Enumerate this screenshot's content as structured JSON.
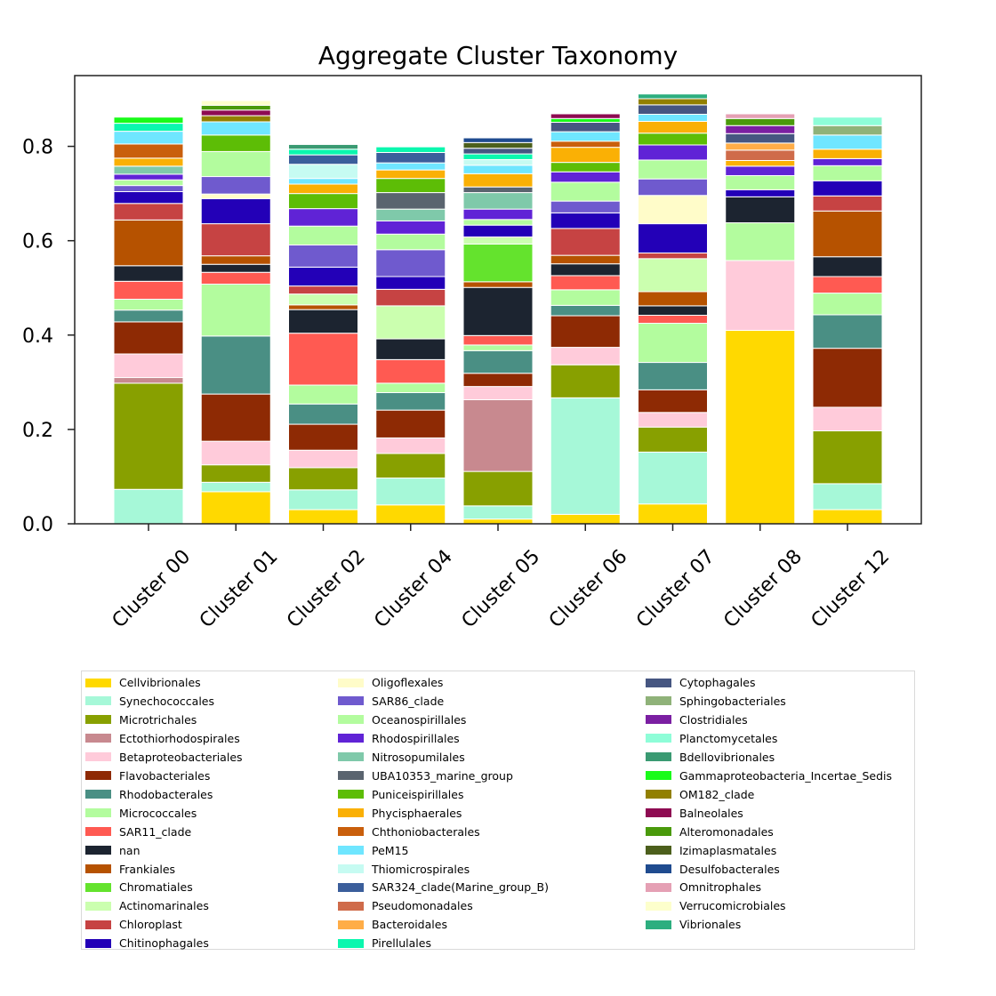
{
  "chart_data": {
    "type": "bar",
    "stacked": true,
    "title": "Aggregate Cluster Taxonomy",
    "xlabel": "",
    "ylabel": "",
    "ylim": [
      0,
      0.95
    ],
    "yticks": [
      0.0,
      0.2,
      0.4,
      0.6,
      0.8
    ],
    "ytick_labels": [
      "0.0",
      "0.2",
      "0.4",
      "0.6",
      "0.8"
    ],
    "categories": [
      "Cluster 00",
      "Cluster 01",
      "Cluster 02",
      "Cluster 04",
      "Cluster 05",
      "Cluster 06",
      "Cluster 07",
      "Cluster 08",
      "Cluster 12"
    ],
    "legend_position": "bottom",
    "series": [
      {
        "name": "Cellvibrionales",
        "color": "#FFD900",
        "values": [
          0,
          0.068,
          0.03,
          0.04,
          0.01,
          0.02,
          0.042,
          0.41,
          0.03
        ]
      },
      {
        "name": "Synechococcales",
        "color": "#A6F8D8",
        "values": [
          0.073,
          0.02,
          0.042,
          0.057,
          0.028,
          0.247,
          0.11,
          0,
          0.055
        ]
      },
      {
        "name": "Microtrichales",
        "color": "#88A000",
        "values": [
          0.225,
          0.037,
          0.047,
          0.052,
          0.073,
          0.07,
          0.053,
          0,
          0.112
        ]
      },
      {
        "name": "Ectothiorhodospirales",
        "color": "#C8898F",
        "values": [
          0.012,
          0,
          0,
          0,
          0.152,
          0,
          0,
          0,
          0
        ]
      },
      {
        "name": "Betaproteobacteriales",
        "color": "#FFCBDA",
        "values": [
          0.05,
          0.05,
          0.037,
          0.033,
          0.028,
          0.037,
          0.031,
          0.148,
          0.05
        ]
      },
      {
        "name": "Flavobacteriales",
        "color": "#8E2A04",
        "values": [
          0.068,
          0.1,
          0.055,
          0.059,
          0.028,
          0.067,
          0.048,
          0,
          0.125
        ]
      },
      {
        "name": "Rhodobacterales",
        "color": "#4A8F84",
        "values": [
          0.025,
          0.123,
          0.043,
          0.037,
          0.048,
          0.022,
          0.058,
          0,
          0.071
        ]
      },
      {
        "name": "Micrococcales",
        "color": "#B3FC9E",
        "values": [
          0.023,
          0.11,
          0.04,
          0.02,
          0.012,
          0.033,
          0.083,
          0.08,
          0.046
        ]
      },
      {
        "name": "SAR11_clade",
        "color": "#FF5A52",
        "values": [
          0.038,
          0.025,
          0.11,
          0.05,
          0.02,
          0.03,
          0.017,
          0,
          0.035
        ]
      },
      {
        "name": "nan",
        "color": "#1C2430",
        "values": [
          0.033,
          0.017,
          0.05,
          0.044,
          0.102,
          0.025,
          0.02,
          0.055,
          0.042
        ]
      },
      {
        "name": "Frankiales",
        "color": "#B65200",
        "values": [
          0.097,
          0.018,
          0.01,
          0,
          0.012,
          0.018,
          0.03,
          0,
          0.097
        ]
      },
      {
        "name": "Chromatiales",
        "color": "#64E32D",
        "values": [
          0,
          0,
          0,
          0,
          0.08,
          0,
          0,
          0,
          0
        ]
      },
      {
        "name": "Actinomarinales",
        "color": "#CBFFAF",
        "values": [
          0,
          0,
          0.023,
          0.07,
          0.015,
          0,
          0.07,
          0,
          0
        ]
      },
      {
        "name": "Chloroplast",
        "color": "#C64343",
        "values": [
          0.035,
          0.068,
          0.017,
          0.035,
          0,
          0.057,
          0.012,
          0,
          0.032
        ]
      },
      {
        "name": "Chitinophagales",
        "color": "#2300B7",
        "values": [
          0.025,
          0.053,
          0.04,
          0.027,
          0.025,
          0.033,
          0.062,
          0.015,
          0.032
        ]
      },
      {
        "name": "Oligoflexales",
        "color": "#FFFCC9",
        "values": [
          0,
          0.01,
          0,
          0,
          0,
          0,
          0.06,
          0,
          0
        ]
      },
      {
        "name": "SAR86_clade",
        "color": "#6F5ACE",
        "values": [
          0.013,
          0.037,
          0.047,
          0.057,
          0,
          0.025,
          0.035,
          0,
          0
        ]
      },
      {
        "name": "Oceanospirillales",
        "color": "#B3FC9E",
        "values": [
          0.012,
          0.053,
          0.04,
          0.033,
          0.012,
          0.04,
          0.04,
          0.03,
          0.032
        ]
      },
      {
        "name": "Rhodospirillales",
        "color": "#6023D6",
        "values": [
          0.012,
          0,
          0.037,
          0.028,
          0.022,
          0.022,
          0.032,
          0.02,
          0.015
        ]
      },
      {
        "name": "Nitrosopumilales",
        "color": "#7FC9AA",
        "values": [
          0.017,
          0,
          0,
          0.025,
          0.035,
          0,
          0,
          0,
          0
        ]
      },
      {
        "name": "UBA10353_marine_group",
        "color": "#5A646F",
        "values": [
          0,
          0,
          0,
          0.035,
          0.012,
          0,
          0,
          0,
          0
        ]
      },
      {
        "name": "Puniceispirillales",
        "color": "#5DBD06",
        "values": [
          0,
          0.035,
          0.032,
          0.03,
          0,
          0.02,
          0.025,
          0,
          0
        ]
      },
      {
        "name": "Phycisphaerales",
        "color": "#FAB005",
        "values": [
          0.017,
          0,
          0.02,
          0.018,
          0.028,
          0.032,
          0.025,
          0.012,
          0.02
        ]
      },
      {
        "name": "Chthoniobacterales",
        "color": "#C95F0C",
        "values": [
          0.03,
          0,
          0,
          0,
          0,
          0.013,
          0,
          0,
          0
        ]
      },
      {
        "name": "PeM15",
        "color": "#6FE6FF",
        "values": [
          0.027,
          0.028,
          0.012,
          0.015,
          0.018,
          0.02,
          0.015,
          0,
          0.03
        ]
      },
      {
        "name": "Thiomicrospirales",
        "color": "#C6FBF2",
        "values": [
          0,
          0,
          0.03,
          0,
          0.012,
          0,
          0,
          0,
          0
        ]
      },
      {
        "name": "SAR324_clade(Marine_group_B)",
        "color": "#3B5E9B",
        "values": [
          0,
          0,
          0.02,
          0.022,
          0,
          0,
          0,
          0,
          0
        ]
      },
      {
        "name": "Pseudomonadales",
        "color": "#CF6B4A",
        "values": [
          0,
          0,
          0,
          0,
          0,
          0,
          0,
          0.022,
          0
        ]
      },
      {
        "name": "Bacteroidales",
        "color": "#FFAD47",
        "values": [
          0,
          0,
          0,
          0,
          0,
          0,
          0,
          0.015,
          0
        ]
      },
      {
        "name": "Pirellulales",
        "color": "#0BF7AE",
        "values": [
          0.017,
          0,
          0.012,
          0.012,
          0.012,
          0,
          0,
          0,
          0
        ]
      },
      {
        "name": "Cytophagales",
        "color": "#465681",
        "values": [
          0,
          0,
          0,
          0,
          0.012,
          0.02,
          0.02,
          0.02,
          0
        ]
      },
      {
        "name": "Sphingobacteriales",
        "color": "#8FB279",
        "values": [
          0,
          0,
          0,
          0,
          0,
          0,
          0,
          0,
          0.02
        ]
      },
      {
        "name": "Clostridiales",
        "color": "#7B1FA2",
        "values": [
          0,
          0,
          0,
          0,
          0,
          0,
          0,
          0.017,
          0
        ]
      },
      {
        "name": "Planctomycetales",
        "color": "#8EFDD8",
        "values": [
          0,
          0,
          0,
          0,
          0,
          0,
          0,
          0,
          0.018
        ]
      },
      {
        "name": "Bdellovibrionales",
        "color": "#3A9A72",
        "values": [
          0,
          0,
          0.01,
          0,
          0,
          0,
          0,
          0,
          0
        ]
      },
      {
        "name": "Gammaproteobacteria_Incertae_Sedis",
        "color": "#1AFB1A",
        "values": [
          0.013,
          0,
          0,
          0,
          0,
          0.008,
          0,
          0,
          0
        ]
      },
      {
        "name": "OM182_clade",
        "color": "#928000",
        "values": [
          0,
          0.013,
          0,
          0,
          0,
          0,
          0.013,
          0,
          0
        ]
      },
      {
        "name": "Balneolales",
        "color": "#8E0B52",
        "values": [
          0,
          0.012,
          0,
          0,
          0,
          0.01,
          0,
          0,
          0
        ]
      },
      {
        "name": "Alteromonadales",
        "color": "#4A9A0B",
        "values": [
          0,
          0.01,
          0,
          0,
          0,
          0,
          0,
          0.015,
          0
        ]
      },
      {
        "name": "Izimaplasmatales",
        "color": "#4C5F1C",
        "values": [
          0,
          0,
          0,
          0,
          0.012,
          0,
          0,
          0,
          0
        ]
      },
      {
        "name": "Desulfobacterales",
        "color": "#1F4B8F",
        "values": [
          0,
          0,
          0,
          0,
          0.01,
          0,
          0,
          0,
          0
        ]
      },
      {
        "name": "Omnitrophales",
        "color": "#E5A0B4",
        "values": [
          0,
          0,
          0,
          0,
          0,
          0,
          0,
          0.01,
          0
        ]
      },
      {
        "name": "Verrucomicrobiales",
        "color": "#FDFFCC",
        "values": [
          0,
          0.01,
          0,
          0,
          0,
          0,
          0,
          0,
          0
        ]
      },
      {
        "name": "Vibrionales",
        "color": "#2DAE7F",
        "values": [
          0,
          0,
          0,
          0,
          0,
          0,
          0.01,
          0,
          0
        ]
      }
    ]
  }
}
